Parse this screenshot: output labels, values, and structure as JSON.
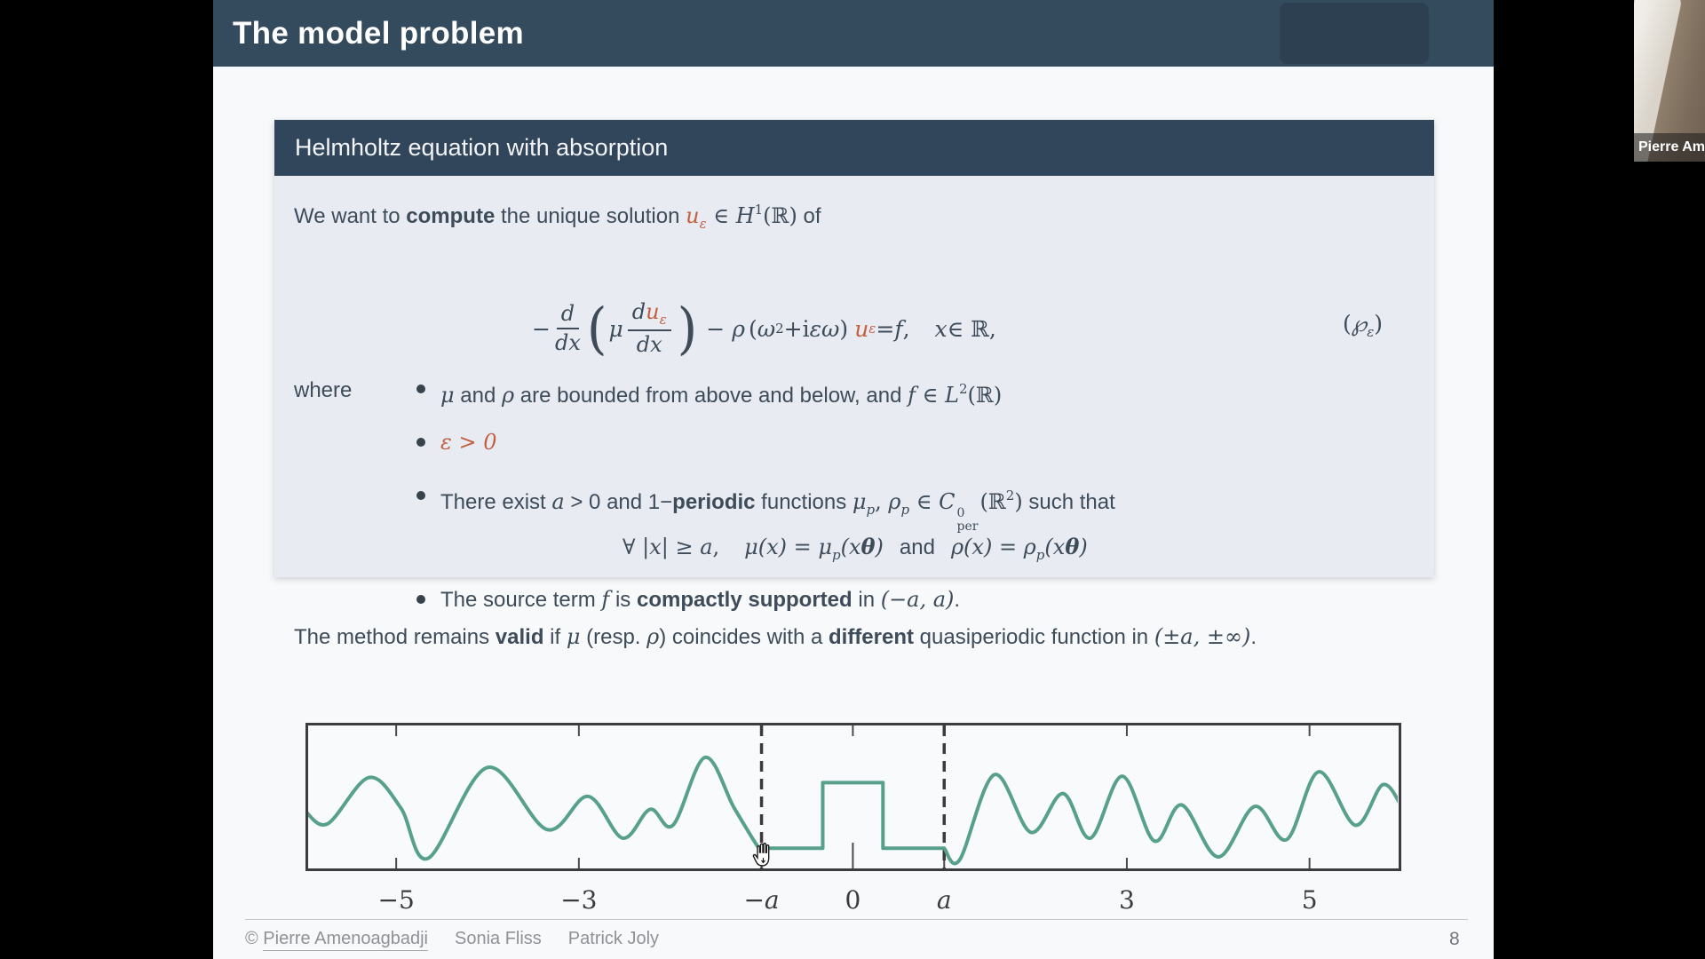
{
  "header": {
    "title": "The model problem"
  },
  "webcam": {
    "name": "Pierre Ame"
  },
  "box": {
    "title": "Helmholtz equation with absorption",
    "intro": {
      "t1": "We want to ",
      "b1": "compute",
      "t2": " the unique solution ",
      "u": "u",
      "usub": "ε",
      "inset": " ∈ ",
      "H": "H",
      "Hsup": "1",
      "R": "(ℝ)",
      "t3": " of"
    },
    "equation": {
      "minus1": "−",
      "dnum": "d",
      "dden": "dx",
      "lp1": "(",
      "mu": "μ",
      "num_d": "d",
      "num_u": "u",
      "num_sub": "ε",
      "den2": "dx",
      "rp1": ")",
      "minus2": "−",
      "rho": "ρ",
      "lp2": "(",
      "w1": "ω",
      "w1sup": "2",
      "plus": " + ",
      "iu": "i",
      "eps": "ε",
      "w2": "ω",
      "rp2": ")",
      "ue": "u",
      "uesub": "ε",
      "equals": " = ",
      "f": "f",
      "comma": ",",
      "x": "x",
      "inR": " ∈ ℝ,",
      "label_lp": "(",
      "label_P": "℘",
      "label_sub": "ε",
      "label_rp": ")"
    },
    "where_label": "where",
    "bullet1": {
      "m1": "μ",
      "t1": " and ",
      "m2": "ρ",
      "t2": " are bounded from above and below, and ",
      "m3": "f",
      "t3": " ∈ ",
      "L": "L",
      "Lsup": "2",
      "R": "(ℝ)"
    },
    "bullet2": {
      "m1": "ε > 0"
    },
    "bullet3": {
      "t1": "There exist ",
      "m1": "a",
      "t2": " > 0 and 1−",
      "b1": "periodic",
      "t3": " functions ",
      "m2": "μ",
      "m2sub": "p",
      "t4": ", ",
      "m3": "ρ",
      "m3sub": "p",
      "t5": " ∈ ",
      "C": "C",
      "Csup": "0",
      "Csub": "per",
      "m4": "(ℝ",
      "m4sup": "2",
      "m5": ")",
      "t6": " such that"
    },
    "bullet3_eq": {
      "q1": "∀ |",
      "qx": "x",
      "q2": "| ≥ ",
      "qa": "a",
      "q3": ",",
      "e1": "μ(x) = μ",
      "e1sub": "p",
      "e2": "(x",
      "th1": "θ",
      "e3": ")",
      "andword": "and",
      "e4": "ρ(x) = ρ",
      "e4sub": "p",
      "e5": "(x",
      "th2": "θ",
      "e6": ")"
    },
    "bullet4": {
      "t1": "The source term ",
      "m1": "f",
      "t2": " is ",
      "b1": "compactly supported",
      "t3": " in ",
      "m2": "(−a, a)",
      "t4": "."
    }
  },
  "note": {
    "t1": "The method remains ",
    "b1": "valid",
    "t2": " if ",
    "m1": "μ",
    "t3": " (resp. ",
    "m2": "ρ",
    "t4": ") coincides with a ",
    "b2": "different",
    "t5": " quasiperiodic function in ",
    "m3": "(±a, ±∞)",
    "t6": "."
  },
  "chart_data": {
    "type": "line",
    "x_range": [
      -6,
      6
    ],
    "y_range": [
      0,
      1
    ],
    "x_ticks": [
      {
        "pos": -5,
        "label": "−5"
      },
      {
        "pos": -3,
        "label": "−3"
      },
      {
        "pos": -1,
        "label": "−a"
      },
      {
        "pos": 0,
        "label": "0"
      },
      {
        "pos": 1,
        "label": "a"
      },
      {
        "pos": 3,
        "label": "3"
      },
      {
        "pos": 5,
        "label": "5"
      }
    ],
    "dashed_vlines_x": [
      -1,
      1
    ],
    "curve_color": "#57a08c",
    "axis_color": "#3c3c3c",
    "grid": false,
    "segments": [
      {
        "name": "left-quasiperiodic",
        "interp": "smooth",
        "points": [
          [
            -6,
            0.4
          ],
          [
            -5.75,
            0.31
          ],
          [
            -5.3,
            0.63
          ],
          [
            -4.95,
            0.42
          ],
          [
            -4.65,
            0.07
          ],
          [
            -4.0,
            0.7
          ],
          [
            -3.35,
            0.27
          ],
          [
            -2.9,
            0.5
          ],
          [
            -2.52,
            0.21
          ],
          [
            -2.22,
            0.41
          ],
          [
            -1.97,
            0.3
          ],
          [
            -1.62,
            0.77
          ],
          [
            -1.3,
            0.42
          ],
          [
            -1.05,
            0.16
          ],
          [
            -1.0,
            0.14
          ]
        ]
      },
      {
        "name": "middle-step",
        "interp": "linear",
        "points": [
          [
            -1,
            0.14
          ],
          [
            -0.33,
            0.14
          ],
          [
            -0.33,
            0.595
          ],
          [
            0.33,
            0.595
          ],
          [
            0.33,
            0.14
          ],
          [
            1.0,
            0.14
          ]
        ]
      },
      {
        "name": "right-quasiperiodic",
        "interp": "smooth",
        "points": [
          [
            1.0,
            0.14
          ],
          [
            1.17,
            0.06
          ],
          [
            1.55,
            0.65
          ],
          [
            1.95,
            0.25
          ],
          [
            2.3,
            0.52
          ],
          [
            2.6,
            0.21
          ],
          [
            2.95,
            0.64
          ],
          [
            3.3,
            0.19
          ],
          [
            3.6,
            0.44
          ],
          [
            4.0,
            0.08
          ],
          [
            4.4,
            0.43
          ],
          [
            4.75,
            0.2
          ],
          [
            5.1,
            0.67
          ],
          [
            5.5,
            0.3
          ],
          [
            5.8,
            0.58
          ],
          [
            6.0,
            0.44
          ]
        ]
      }
    ]
  },
  "footer": {
    "copyright": "© ",
    "author1": "Pierre Amenoagbadji",
    "author2": "Sonia Fliss",
    "author3": "Patrick Joly",
    "page": "8"
  }
}
